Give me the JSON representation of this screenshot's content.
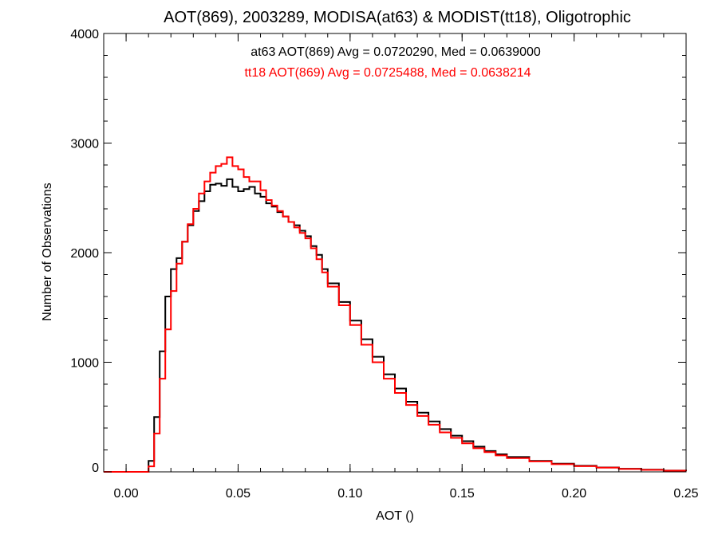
{
  "chart_data": {
    "type": "line",
    "title": "AOT(869), 2003289, MODISA(at63) & MODIST(tt18), Oligotrophic",
    "xlabel": "AOT ()",
    "ylabel": "Number of Observations",
    "xlim": [
      -0.01,
      0.25
    ],
    "ylim": [
      0,
      4000
    ],
    "x_ticks": [
      0.0,
      0.05,
      0.1,
      0.15,
      0.2,
      0.25
    ],
    "x_tick_labels": [
      "0.00",
      "0.05",
      "0.10",
      "0.15",
      "0.20",
      "0.25"
    ],
    "y_ticks": [
      0,
      1000,
      2000,
      3000,
      4000
    ],
    "y_tick_labels": [
      "0",
      "1000",
      "2000",
      "3000",
      "4000"
    ],
    "grid": false,
    "annotations": [
      {
        "text": "at63 AOT(869) Avg = 0.0720290, Med = 0.0639000",
        "color": "#000000"
      },
      {
        "text": "tt18 AOT(869) Avg = 0.0725488, Med = 0.0638214",
        "color": "#ff0000"
      }
    ],
    "series": [
      {
        "color": "#000000",
        "x": [
          -0.01,
          0.0,
          0.005,
          0.0075,
          0.01,
          0.0125,
          0.015,
          0.0175,
          0.02,
          0.0225,
          0.025,
          0.0275,
          0.03,
          0.0325,
          0.035,
          0.0375,
          0.04,
          0.0425,
          0.045,
          0.0475,
          0.05,
          0.0525,
          0.055,
          0.0575,
          0.06,
          0.0625,
          0.065,
          0.0675,
          0.07,
          0.0725,
          0.075,
          0.0775,
          0.08,
          0.0825,
          0.085,
          0.0875,
          0.09,
          0.095,
          0.1,
          0.105,
          0.11,
          0.115,
          0.12,
          0.125,
          0.13,
          0.135,
          0.14,
          0.145,
          0.15,
          0.155,
          0.16,
          0.165,
          0.17,
          0.18,
          0.19,
          0.2,
          0.21,
          0.22,
          0.23,
          0.24,
          0.25
        ],
        "y": [
          0,
          0,
          0,
          0,
          100,
          500,
          1100,
          1600,
          1850,
          1950,
          2100,
          2250,
          2380,
          2470,
          2560,
          2620,
          2630,
          2610,
          2670,
          2600,
          2560,
          2580,
          2600,
          2540,
          2510,
          2450,
          2420,
          2370,
          2330,
          2280,
          2250,
          2200,
          2150,
          2060,
          1980,
          1850,
          1720,
          1550,
          1380,
          1210,
          1050,
          890,
          760,
          640,
          540,
          460,
          390,
          330,
          280,
          230,
          190,
          160,
          135,
          100,
          75,
          55,
          40,
          28,
          20,
          12,
          8
        ]
      },
      {
        "color": "#ff0000",
        "x": [
          -0.01,
          0.0,
          0.005,
          0.0075,
          0.01,
          0.0125,
          0.015,
          0.0175,
          0.02,
          0.0225,
          0.025,
          0.0275,
          0.03,
          0.0325,
          0.035,
          0.0375,
          0.04,
          0.0425,
          0.045,
          0.0475,
          0.05,
          0.0525,
          0.055,
          0.0575,
          0.06,
          0.0625,
          0.065,
          0.0675,
          0.07,
          0.0725,
          0.075,
          0.0775,
          0.08,
          0.0825,
          0.085,
          0.0875,
          0.09,
          0.095,
          0.1,
          0.105,
          0.11,
          0.115,
          0.12,
          0.125,
          0.13,
          0.135,
          0.14,
          0.145,
          0.15,
          0.155,
          0.16,
          0.165,
          0.17,
          0.18,
          0.19,
          0.2,
          0.21,
          0.22,
          0.23,
          0.24,
          0.25
        ],
        "y": [
          0,
          0,
          0,
          0,
          50,
          350,
          850,
          1300,
          1650,
          1900,
          2100,
          2260,
          2400,
          2540,
          2650,
          2730,
          2790,
          2810,
          2870,
          2790,
          2760,
          2690,
          2650,
          2650,
          2570,
          2480,
          2430,
          2380,
          2330,
          2280,
          2230,
          2180,
          2130,
          2040,
          1940,
          1820,
          1690,
          1520,
          1340,
          1160,
          1000,
          850,
          720,
          610,
          510,
          430,
          360,
          310,
          260,
          215,
          180,
          150,
          125,
          95,
          70,
          52,
          38,
          26,
          18,
          11,
          7
        ]
      }
    ]
  }
}
